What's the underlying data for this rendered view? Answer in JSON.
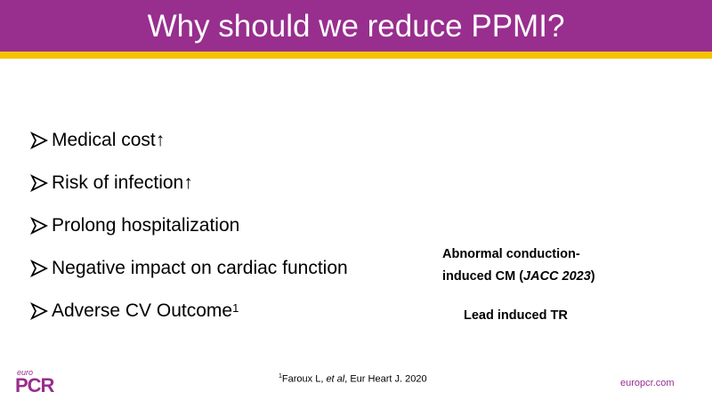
{
  "header": {
    "title": "Why should we reduce PPMI?"
  },
  "bullets": [
    {
      "text": "Medical cost↑"
    },
    {
      "text": "Risk of infection↑"
    },
    {
      "text": "Prolong hospitalization"
    },
    {
      "text": "Negative impact on cardiac function"
    },
    {
      "text": "Adverse CV Outcome",
      "sup": "1"
    }
  ],
  "side_notes": [
    {
      "line1": "Abnormal conduction-",
      "line2": "induced CM (",
      "italic": "JACC 2023",
      "after": ")"
    },
    {
      "line1": "Lead induced TR"
    }
  ],
  "footnote": {
    "marker": "1",
    "author": "Faroux L, ",
    "italic": "et al",
    "rest": ", Eur Heart J. 2020"
  },
  "logo": {
    "small": "euro",
    "large": "PCR"
  },
  "website": "europcr.com"
}
